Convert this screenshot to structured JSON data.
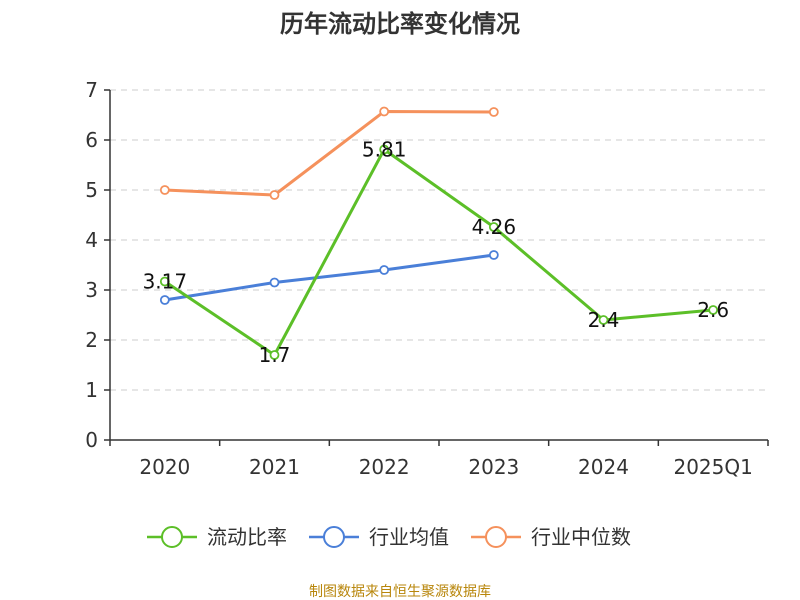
{
  "chart_data": {
    "type": "line",
    "title": "历年流动比率变化情况",
    "categories": [
      "2020",
      "2021",
      "2022",
      "2023",
      "2024",
      "2025Q1"
    ],
    "yticks": [
      "0",
      "1",
      "2",
      "3",
      "4",
      "5",
      "6",
      "7"
    ],
    "ylim": [
      0,
      7
    ],
    "grid": true,
    "legend_position": "bottom",
    "series": [
      {
        "name": "流动比率",
        "color": "#5cbf28",
        "values": [
          3.17,
          1.7,
          5.81,
          4.26,
          2.4,
          2.6
        ],
        "labels": [
          "3.17",
          "1.7",
          "5.81",
          "4.26",
          "2.4",
          "2.6"
        ]
      },
      {
        "name": "行业均值",
        "color": "#4a7fd8",
        "values": [
          2.8,
          3.15,
          3.4,
          3.7,
          null,
          null
        ]
      },
      {
        "name": "行业中位数",
        "color": "#f5915c",
        "values": [
          5.0,
          4.9,
          6.57,
          6.56,
          null,
          null
        ]
      }
    ],
    "source": "制图数据来自恒生聚源数据库"
  }
}
